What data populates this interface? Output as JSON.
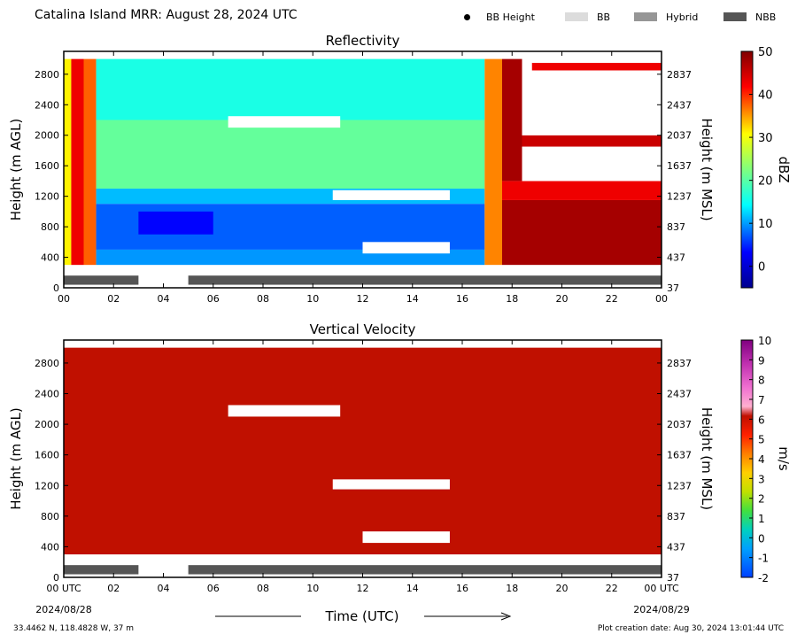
{
  "header": {
    "title": "Catalina Island MRR:  August 28, 2024 UTC",
    "legend": [
      {
        "label": "BB Height",
        "color": "#000000",
        "kind": "dot"
      },
      {
        "label": "BB",
        "color": "#dcdcdc",
        "kind": "swatch"
      },
      {
        "label": "Hybrid",
        "color": "#969696",
        "kind": "swatch"
      },
      {
        "label": "NBB",
        "color": "#555555",
        "kind": "swatch"
      }
    ]
  },
  "chart_data": [
    {
      "type": "heatmap",
      "title": "Reflectivity",
      "ylabel": "Height (m AGL)",
      "ylabel_right": "Height (m MSL)",
      "xlabel": "Time (UTC)",
      "xlim": [
        0,
        24
      ],
      "ylim": [
        0,
        3100
      ],
      "x_ticks": [
        "00",
        "02",
        "04",
        "06",
        "08",
        "10",
        "12",
        "14",
        "16",
        "18",
        "20",
        "22",
        "00"
      ],
      "y_ticks": [
        0,
        400,
        800,
        1200,
        1600,
        2000,
        2400,
        2800
      ],
      "y_ticks_right": [
        37,
        437,
        837,
        1237,
        1637,
        2037,
        2437,
        2837
      ],
      "colorbar": {
        "label": "dBZ",
        "min": -5,
        "max": 50,
        "ticks": [
          0,
          10,
          20,
          30,
          40,
          50
        ],
        "colormap": "jet"
      },
      "regions": [
        {
          "t": [
            0.0,
            0.3
          ],
          "h": [
            300,
            3000
          ],
          "value": 30
        },
        {
          "t": [
            0.3,
            0.8
          ],
          "h": [
            300,
            3000
          ],
          "value": 44
        },
        {
          "t": [
            0.8,
            1.3
          ],
          "h": [
            300,
            3000
          ],
          "value": 38
        },
        {
          "t": [
            1.3,
            16.9
          ],
          "h": [
            2200,
            3000
          ],
          "value": 17
        },
        {
          "t": [
            1.3,
            16.9
          ],
          "h": [
            1300,
            2200
          ],
          "value": 21
        },
        {
          "t": [
            1.3,
            16.9
          ],
          "h": [
            1100,
            1300
          ],
          "value": 12
        },
        {
          "t": [
            1.3,
            16.9
          ],
          "h": [
            500,
            1100
          ],
          "value": 7
        },
        {
          "t": [
            3.0,
            6.0
          ],
          "h": [
            700,
            1000
          ],
          "value": 2
        },
        {
          "t": [
            1.3,
            16.9
          ],
          "h": [
            300,
            500
          ],
          "value": 10
        },
        {
          "t": [
            16.9,
            17.6
          ],
          "h": [
            300,
            3000
          ],
          "value": 36
        },
        {
          "t": [
            17.6,
            24.0
          ],
          "h": [
            300,
            1150
          ],
          "value": 48
        },
        {
          "t": [
            17.6,
            24.0
          ],
          "h": [
            1150,
            1400
          ],
          "value": 44
        },
        {
          "t": [
            18.4,
            24.0
          ],
          "h": [
            1850,
            2000
          ],
          "value": 46
        },
        {
          "t": [
            18.8,
            24.0
          ],
          "h": [
            2850,
            2950
          ],
          "value": 44
        },
        {
          "t": [
            17.6,
            18.4
          ],
          "h": [
            1400,
            3000
          ],
          "value": 48
        }
      ],
      "gaps": [
        {
          "t": [
            6.6,
            11.1
          ],
          "h": [
            2100,
            2250
          ]
        },
        {
          "t": [
            10.8,
            15.5
          ],
          "h": [
            1150,
            1280
          ]
        },
        {
          "t": [
            12.0,
            15.5
          ],
          "h": [
            450,
            600
          ]
        },
        {
          "t": [
            18.4,
            24.0
          ],
          "h": [
            1400,
            1850
          ]
        },
        {
          "t": [
            18.4,
            24.0
          ],
          "h": [
            2000,
            2850
          ]
        },
        {
          "t": [
            18.8,
            24.0
          ],
          "h": [
            2950,
            3000
          ]
        }
      ],
      "bb_bar": {
        "h": [
          40,
          160
        ],
        "segments": [
          [
            0.0,
            3.0
          ],
          [
            5.0,
            24.0
          ]
        ],
        "color": "#555555"
      }
    },
    {
      "type": "heatmap",
      "title": "Vertical Velocity",
      "ylabel": "Height (m AGL)",
      "ylabel_right": "Height (m MSL)",
      "xlabel": "Time (UTC)",
      "xlim": [
        0,
        24
      ],
      "ylim": [
        0,
        3100
      ],
      "x_ticks": [
        "00 UTC",
        "02",
        "04",
        "06",
        "08",
        "10",
        "12",
        "14",
        "16",
        "18",
        "20",
        "22",
        "00 UTC"
      ],
      "x_date_left": "2024/08/28",
      "x_date_right": "2024/08/29",
      "y_ticks": [
        0,
        400,
        800,
        1200,
        1600,
        2000,
        2400,
        2800
      ],
      "y_ticks_right": [
        37,
        437,
        837,
        1237,
        1637,
        2037,
        2437,
        2837
      ],
      "colorbar": {
        "label": "m/s",
        "min": -2,
        "max": 10,
        "ticks": [
          -2,
          -1,
          0,
          1,
          2,
          3,
          4,
          5,
          6,
          7,
          8,
          9,
          10
        ]
      },
      "regions": [
        {
          "t": [
            0.0,
            24.0
          ],
          "h": [
            300,
            3000
          ],
          "value": 6
        }
      ],
      "gaps": [
        {
          "t": [
            6.6,
            11.1
          ],
          "h": [
            2100,
            2250
          ]
        },
        {
          "t": [
            10.8,
            15.5
          ],
          "h": [
            1150,
            1280
          ]
        },
        {
          "t": [
            12.0,
            15.5
          ],
          "h": [
            450,
            600
          ]
        }
      ],
      "bb_bar": {
        "h": [
          40,
          160
        ],
        "segments": [
          [
            0.0,
            3.0
          ],
          [
            5.0,
            24.0
          ]
        ],
        "color": "#555555"
      }
    }
  ],
  "footer": {
    "location": "33.4462 N, 118.4828 W, 37 m",
    "creation": "Plot creation date: Aug 30, 2024 13:01:44 UTC"
  }
}
